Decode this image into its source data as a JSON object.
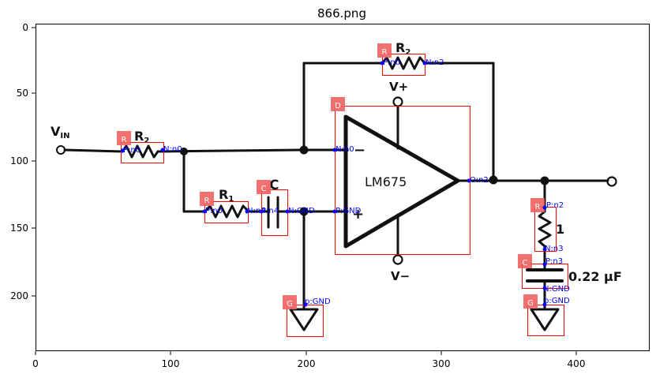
{
  "figure": {
    "title": "866.png",
    "x_ticks": [
      "0",
      "100",
      "200",
      "300",
      "400"
    ],
    "y_ticks": [
      "0",
      "50",
      "100",
      "150",
      "200"
    ]
  },
  "schematic": {
    "vin_label": "V",
    "vin_sub": "IN",
    "r2_input": {
      "letter": "R",
      "sub": "2"
    },
    "r2_feedback": {
      "letter": "R",
      "sub": "2"
    },
    "r1": {
      "letter": "R",
      "sub": "1"
    },
    "cap_c_label": "C",
    "opamp_label": "LM675",
    "minus_input": "−",
    "plus_input": "+",
    "vplus": "V+",
    "vminus": "V−",
    "r_out_label": "1",
    "cap_out_label": "0.22 μF"
  },
  "annotations": {
    "components": [
      {
        "type": "R",
        "pins": [
          "P:n0",
          "N:n0"
        ]
      },
      {
        "type": "R",
        "pins": [
          "P:n0",
          "N:n2"
        ]
      },
      {
        "type": "R",
        "pins": [
          "P:n0",
          "N:n4"
        ]
      },
      {
        "type": "C",
        "pins": [
          "P:n4",
          "N:GND"
        ]
      },
      {
        "type": "D",
        "pins": [
          "N:n0",
          "P:GND",
          "O:n2"
        ]
      },
      {
        "type": "R",
        "pins": [
          "P:n2",
          "N:n3"
        ]
      },
      {
        "type": "C",
        "pins": [
          "P:n3",
          "N:GND"
        ]
      },
      {
        "type": "G",
        "pins": [
          "p:GND"
        ]
      },
      {
        "type": "G",
        "pins": [
          "p:GND"
        ]
      }
    ]
  },
  "colors": {
    "annotation_box": "#ff0000",
    "annotation_badge": "#f06060",
    "pin_dot": "#0000ff",
    "wire": "#111111"
  }
}
